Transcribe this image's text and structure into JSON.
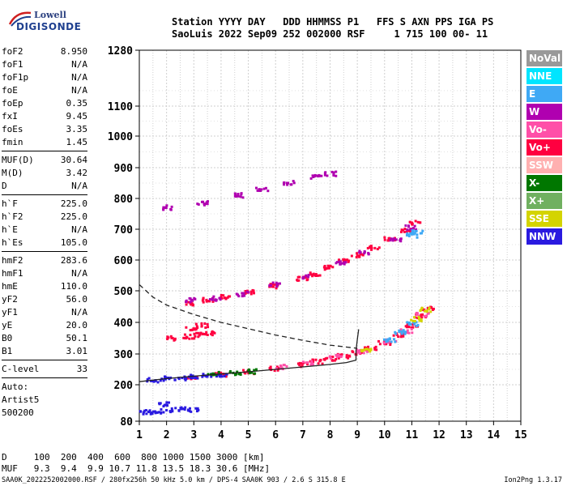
{
  "logo": {
    "line1": "Lowell",
    "line2": "DIGISONDE"
  },
  "header": {
    "line1": "Station YYYY DAY   DDD HHMMSS P1   FFS S AXN PPS IGA PS",
    "line2": "SaoLuis 2022 Sep09 252 002000 RSF     1 715 100 00- 11"
  },
  "params": {
    "group1": [
      {
        "name": "foF2",
        "value": "8.950"
      },
      {
        "name": "foF1",
        "value": "N/A"
      },
      {
        "name": "foF1p",
        "value": "N/A"
      },
      {
        "name": "foE",
        "value": "N/A"
      },
      {
        "name": "foEp",
        "value": "0.35"
      },
      {
        "name": "fxI",
        "value": "9.45"
      },
      {
        "name": "foEs",
        "value": "3.35"
      },
      {
        "name": "fmin",
        "value": "1.45"
      }
    ],
    "group2": [
      {
        "name": "MUF(D)",
        "value": "30.64"
      },
      {
        "name": "M(D)",
        "value": "3.42"
      },
      {
        "name": "D",
        "value": "N/A"
      }
    ],
    "group3": [
      {
        "name": "h`F",
        "value": "225.0"
      },
      {
        "name": "h`F2",
        "value": "225.0"
      },
      {
        "name": "h`E",
        "value": "N/A"
      },
      {
        "name": "h`Es",
        "value": "105.0"
      }
    ],
    "group4": [
      {
        "name": "hmF2",
        "value": "283.6"
      },
      {
        "name": "hmF1",
        "value": "N/A"
      },
      {
        "name": "hmE",
        "value": "110.0"
      },
      {
        "name": "yF2",
        "value": "56.0"
      },
      {
        "name": "yF1",
        "value": "N/A"
      },
      {
        "name": "yE",
        "value": "20.0"
      },
      {
        "name": "B0",
        "value": "50.1"
      },
      {
        "name": "B1",
        "value": "3.01"
      }
    ],
    "group5": [
      {
        "name": "C-level",
        "value": "33"
      }
    ],
    "auto": [
      "Auto:",
      "Artist5",
      "500200"
    ]
  },
  "legend": [
    {
      "label": "NoVal",
      "color": "#999999"
    },
    {
      "label": "NNE",
      "color": "#00e5ff"
    },
    {
      "label": "E",
      "color": "#3fa9f5"
    },
    {
      "label": "W",
      "color": "#b000b0"
    },
    {
      "label": "Vo-",
      "color": "#ff4fa8"
    },
    {
      "label": "Vo+",
      "color": "#ff0040"
    },
    {
      "label": "SSW",
      "color": "#ffb0b0"
    },
    {
      "label": "X-",
      "color": "#007700"
    },
    {
      "label": "X+",
      "color": "#70b060"
    },
    {
      "label": "SSE",
      "color": "#d4d400"
    },
    {
      "label": "NNW",
      "color": "#2a1ae0"
    }
  ],
  "muf_table": {
    "row1": "D     100  200  400  600  800 1000 1500 3000 [km]",
    "row2": "MUF   9.3  9.4  9.9 10.7 11.8 13.5 18.3 30.6 [MHz]"
  },
  "footer": "SAA0K_2022252002000.RSF / 280fx256h 50 kHz 5.0 km / DPS-4 SAA0K 903 / 2.6 S 315.8 E",
  "version": "Ion2Png 1.3.17",
  "chart_data": {
    "type": "scatter",
    "xlim": [
      1,
      15
    ],
    "ylim": [
      80,
      1280
    ],
    "x_ticks": [
      1,
      2,
      3,
      4,
      5,
      6,
      7,
      8,
      9,
      10,
      11,
      12,
      13,
      14,
      15
    ],
    "y_ticks": [
      80,
      200,
      300,
      400,
      500,
      600,
      700,
      800,
      900,
      1000,
      1100,
      1280
    ],
    "grid": true,
    "y_scale": "nonlinear",
    "series": [
      {
        "color": "#ff0040",
        "points": [
          [
            2.9,
            460
          ],
          [
            3.5,
            470
          ],
          [
            4.2,
            480
          ],
          [
            5,
            495
          ],
          [
            6,
            515
          ],
          [
            7,
            540
          ],
          [
            7.5,
            555
          ],
          [
            8,
            575
          ],
          [
            8.5,
            595
          ],
          [
            9,
            615
          ],
          [
            9.6,
            640
          ],
          [
            10.2,
            670
          ],
          [
            10.8,
            695
          ],
          [
            11.1,
            720
          ]
        ]
      },
      {
        "color": "#b000b0",
        "points": [
          [
            2.9,
            470
          ],
          [
            3.8,
            475
          ],
          [
            4.8,
            490
          ],
          [
            6,
            520
          ],
          [
            7.2,
            545
          ],
          [
            8.4,
            590
          ],
          [
            9.3,
            625
          ],
          [
            10.4,
            665
          ],
          [
            11,
            705
          ]
        ]
      },
      {
        "color": "#b000b0",
        "points": [
          [
            2.1,
            770
          ],
          [
            3.3,
            785
          ],
          [
            4.6,
            810
          ],
          [
            5.5,
            830
          ],
          [
            6.5,
            850
          ],
          [
            7.5,
            870
          ],
          [
            8,
            880
          ]
        ]
      },
      {
        "color": "#ff0040",
        "points": [
          [
            2.2,
            350
          ],
          [
            2.8,
            355
          ],
          [
            3.2,
            360
          ],
          [
            3.6,
            365
          ],
          [
            2.9,
            380
          ],
          [
            3.3,
            390
          ]
        ]
      },
      {
        "color": "#ff0040",
        "points": [
          [
            3,
            225
          ],
          [
            4,
            232
          ],
          [
            5,
            242
          ],
          [
            6,
            252
          ],
          [
            7,
            265
          ],
          [
            7.5,
            275
          ],
          [
            8,
            285
          ],
          [
            8.5,
            293
          ],
          [
            9,
            305
          ],
          [
            9.5,
            318
          ],
          [
            10,
            335
          ],
          [
            10.5,
            360
          ],
          [
            11,
            390
          ],
          [
            11.3,
            420
          ],
          [
            11.6,
            445
          ]
        ]
      },
      {
        "color": "#ff4fa8",
        "points": [
          [
            6.2,
            258
          ],
          [
            7.2,
            270
          ],
          [
            8.2,
            290
          ],
          [
            9.2,
            308
          ],
          [
            10.2,
            340
          ],
          [
            10.8,
            372
          ],
          [
            11.4,
            425
          ]
        ]
      },
      {
        "color": "#2a1ae0",
        "points": [
          [
            1.5,
            215
          ],
          [
            2,
            220
          ],
          [
            2.5,
            222
          ],
          [
            3,
            226
          ],
          [
            3.5,
            228
          ],
          [
            4,
            232
          ]
        ]
      },
      {
        "color": "#007700",
        "points": [
          [
            3.7,
            235
          ],
          [
            4.5,
            238
          ],
          [
            5.2,
            243
          ]
        ]
      },
      {
        "color": "#2a1ae0",
        "points": [
          [
            1.2,
            110
          ],
          [
            1.6,
            112
          ],
          [
            2,
            115
          ],
          [
            2.5,
            120
          ],
          [
            3,
            118
          ],
          [
            1.9,
            135
          ]
        ]
      },
      {
        "color": "#3fa9f5",
        "points": [
          [
            10.2,
            345
          ],
          [
            10.6,
            370
          ],
          [
            11,
            395
          ],
          [
            11.2,
            690
          ],
          [
            11,
            680
          ]
        ]
      },
      {
        "color": "#d4d400",
        "points": [
          [
            11.2,
            410
          ],
          [
            11.5,
            440
          ],
          [
            9.3,
            310
          ]
        ]
      }
    ],
    "curves": [
      {
        "name": "",
        "style": "solid",
        "points": [
          [
            1,
            210
          ],
          [
            2,
            220
          ],
          [
            3,
            228
          ],
          [
            4,
            235
          ],
          [
            5,
            242
          ],
          [
            6,
            250
          ],
          [
            7,
            258
          ],
          [
            8,
            266
          ],
          [
            8.6,
            272
          ],
          [
            8.95,
            280
          ],
          [
            8.95,
            310
          ],
          [
            9,
            345
          ],
          [
            9.05,
            378
          ]
        ]
      },
      {
        "name": "",
        "style": "dashed",
        "points": [
          [
            1,
            520
          ],
          [
            1.5,
            480
          ],
          [
            2,
            455
          ],
          [
            3,
            425
          ],
          [
            4,
            400
          ],
          [
            5,
            380
          ],
          [
            6,
            360
          ],
          [
            7,
            343
          ],
          [
            8,
            328
          ],
          [
            9,
            318
          ]
        ]
      }
    ]
  }
}
